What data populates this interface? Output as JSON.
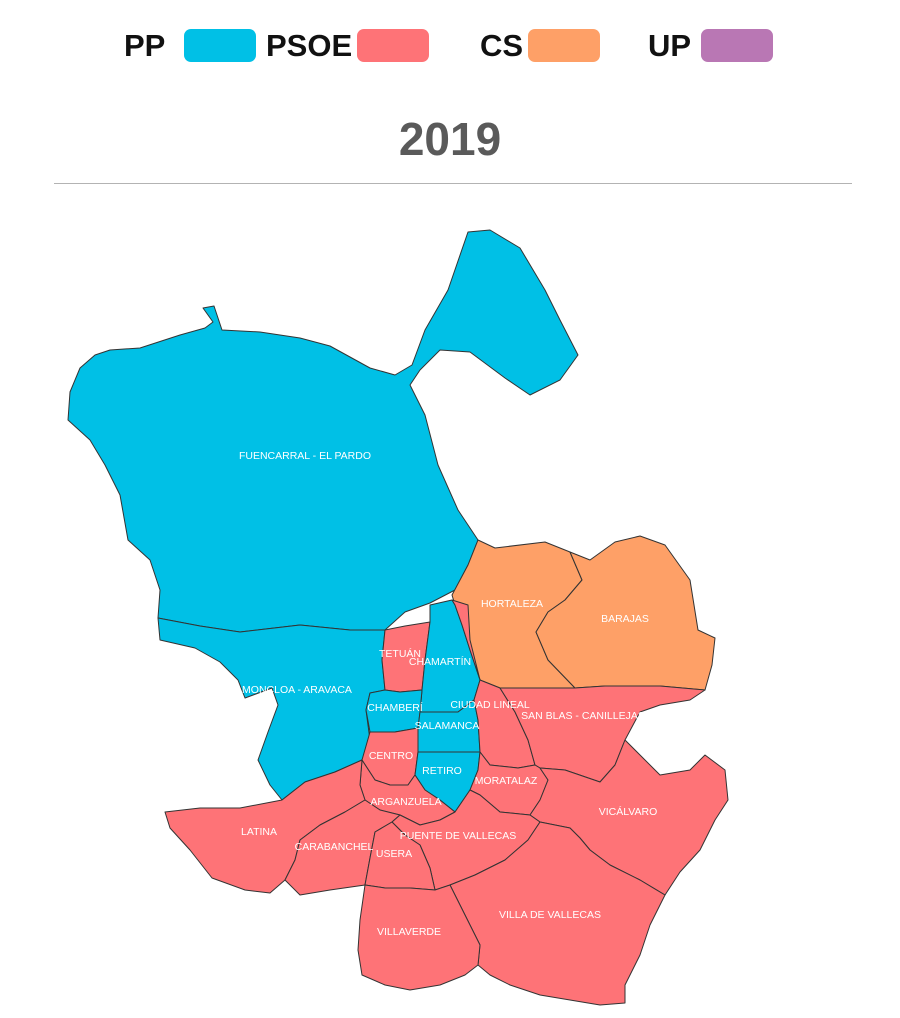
{
  "legend": [
    {
      "party": "PP",
      "color": "#00c0e6"
    },
    {
      "party": "PSOE",
      "color": "#fe7377"
    },
    {
      "party": "CS",
      "color": "#fea067"
    },
    {
      "party": "UP",
      "color": "#b977b4"
    }
  ],
  "title": "2019",
  "districts": [
    {
      "id": "fuencarral",
      "label": "FUENCARRAL - EL PARDO",
      "party": "PP"
    },
    {
      "id": "moncloa",
      "label": "MONCLOA - ARAVACA",
      "party": "PP"
    },
    {
      "id": "hortaleza",
      "label": "HORTALEZA",
      "party": "CS"
    },
    {
      "id": "barajas",
      "label": "BARAJAS",
      "party": "CS"
    },
    {
      "id": "tetuan",
      "label": "TETUÁN",
      "party": "PSOE"
    },
    {
      "id": "chamartin",
      "label": "CHAMARTÍN",
      "party": "PP"
    },
    {
      "id": "chamberi",
      "label": "CHAMBERÍ",
      "party": "PP"
    },
    {
      "id": "salamanca",
      "label": "SALAMANCA",
      "party": "PP"
    },
    {
      "id": "ciudad-lineal",
      "label": "CIUDAD LINEAL",
      "party": "PSOE"
    },
    {
      "id": "san-blas",
      "label": "SAN BLAS - CANILLEJAS",
      "party": "PSOE"
    },
    {
      "id": "centro",
      "label": "CENTRO",
      "party": "PSOE"
    },
    {
      "id": "retiro",
      "label": "RETIRO",
      "party": "PP"
    },
    {
      "id": "moratalaz",
      "label": "MORATALAZ",
      "party": "PSOE"
    },
    {
      "id": "arganzuela",
      "label": "ARGANZUELA",
      "party": "PSOE"
    },
    {
      "id": "vicalvaro",
      "label": "VICÁLVARO",
      "party": "PSOE"
    },
    {
      "id": "latina",
      "label": "LATINA",
      "party": "PSOE"
    },
    {
      "id": "carabanchel",
      "label": "CARABANCHEL",
      "party": "PSOE"
    },
    {
      "id": "puente-vallecas",
      "label": "PUENTE DE VALLECAS",
      "party": "PSOE"
    },
    {
      "id": "usera",
      "label": "USERA",
      "party": "PSOE"
    },
    {
      "id": "villa-vallecas",
      "label": "VILLA DE VALLECAS",
      "party": "PSOE"
    },
    {
      "id": "villaverde",
      "label": "VILLAVERDE",
      "party": "PSOE"
    }
  ]
}
